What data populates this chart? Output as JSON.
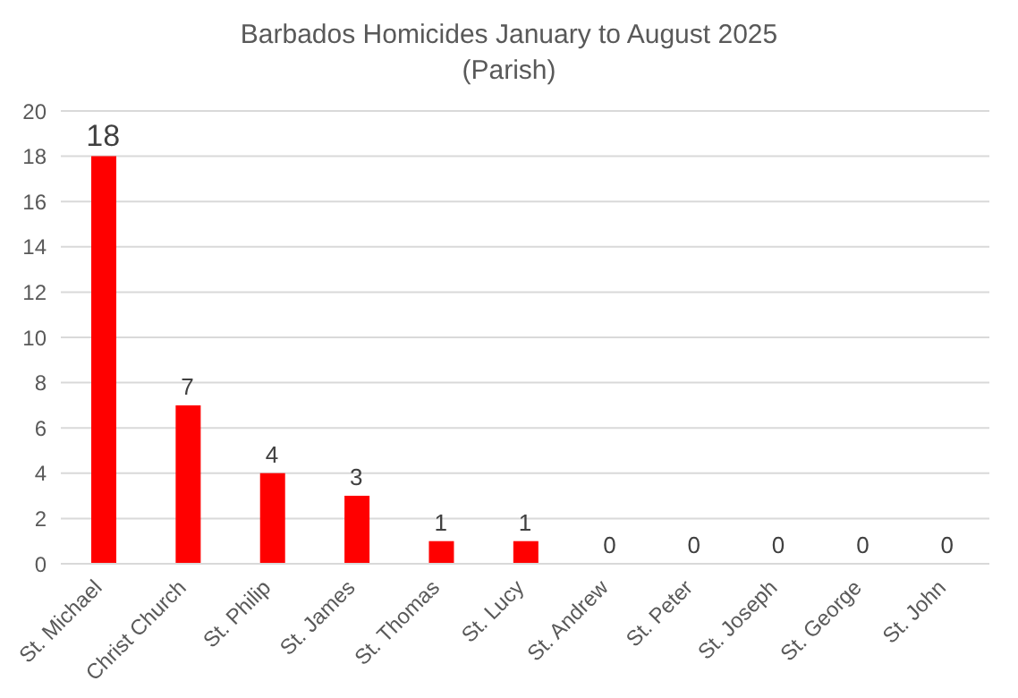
{
  "chart_data": {
    "type": "bar",
    "title": "Barbados Homicides January to August 2025",
    "subtitle": "(Parish)",
    "categories": [
      "St. Michael",
      "Christ Church",
      "St. Philip",
      "St. James",
      "St. Thomas",
      "St. Lucy",
      "St. Andrew",
      "St. Peter",
      "St. Joseph",
      "St. George",
      "St. John"
    ],
    "values": [
      18,
      7,
      4,
      3,
      1,
      1,
      0,
      0,
      0,
      0,
      0
    ],
    "color": "#ff0000",
    "ylim": [
      0,
      20
    ],
    "yticks": [
      0,
      2,
      4,
      6,
      8,
      10,
      12,
      14,
      16,
      18,
      20
    ],
    "grid": "y",
    "data_labels": true
  }
}
